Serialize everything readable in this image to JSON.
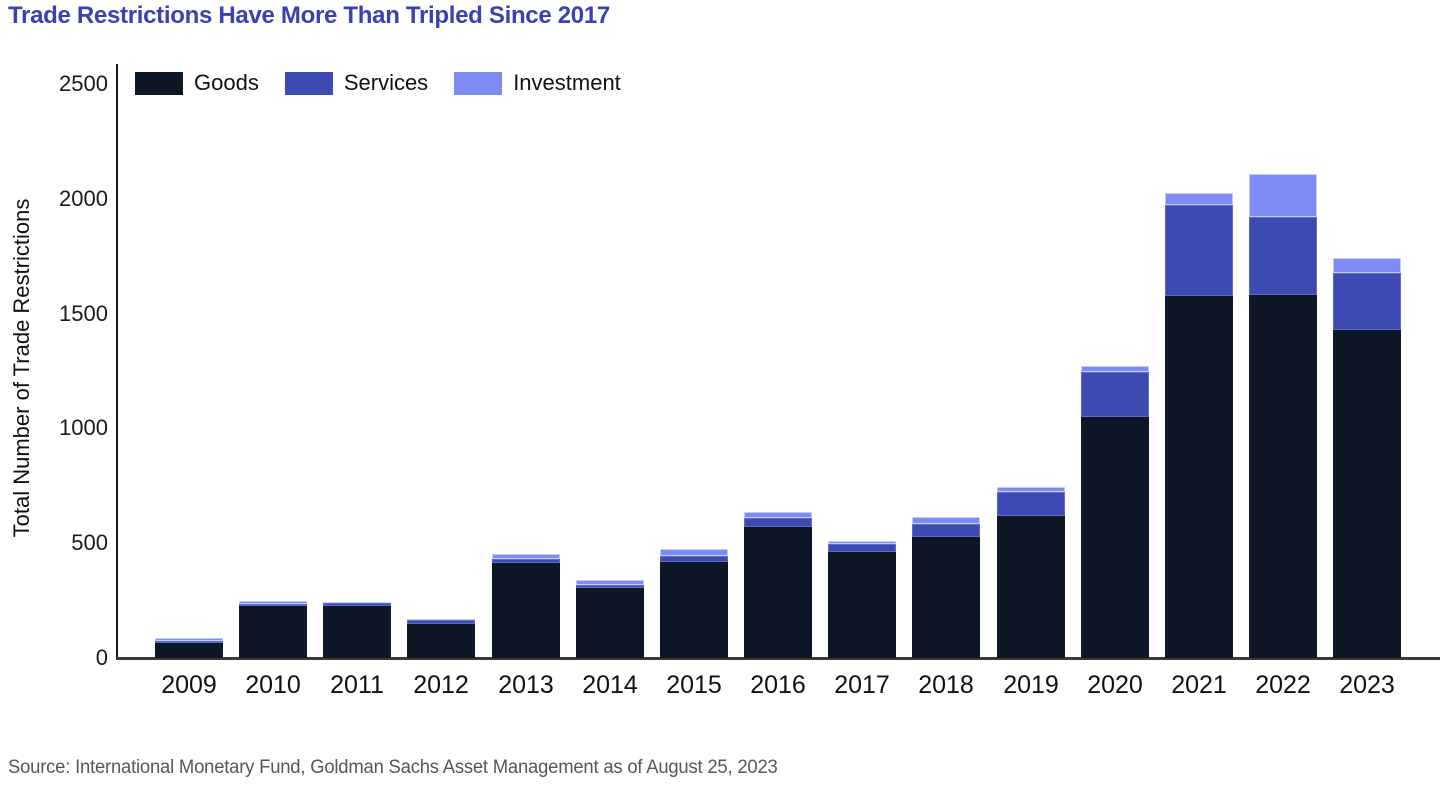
{
  "title": "Trade Restrictions Have More Than Tripled Since 2017",
  "source": "Source: International Monetary Fund, Goldman Sachs Asset Management as of August 25, 2023",
  "colors": {
    "goods": "#0d1726",
    "services": "#3d4ab1",
    "investment": "#7e8bf2",
    "title_text": "#3a41b5",
    "axis_text": "#1a1a1a",
    "source_text": "#575757"
  },
  "legend": [
    {
      "label": "Goods",
      "color": "#0d1726"
    },
    {
      "label": "Services",
      "color": "#3d4ab1"
    },
    {
      "label": "Investment",
      "color": "#7e8bf2"
    }
  ],
  "chart_data": {
    "type": "bar",
    "stacked": true,
    "title": "Trade Restrictions Have More Than Tripled Since 2017",
    "xlabel": "",
    "ylabel": "Total Number of Trade Restrictions",
    "categories": [
      "2009",
      "2010",
      "2011",
      "2012",
      "2013",
      "2014",
      "2015",
      "2016",
      "2017",
      "2018",
      "2019",
      "2020",
      "2021",
      "2022",
      "2023"
    ],
    "series": [
      {
        "name": "Goods",
        "values": [
          65,
          225,
          225,
          150,
          415,
          305,
          420,
          570,
          460,
          525,
          620,
          1050,
          1575,
          1580,
          1430
        ]
      },
      {
        "name": "Services",
        "values": [
          10,
          10,
          15,
          15,
          15,
          15,
          25,
          40,
          35,
          60,
          105,
          195,
          400,
          340,
          245
        ]
      },
      {
        "name": "Investment",
        "values": [
          10,
          15,
          5,
          5,
          25,
          20,
          30,
          25,
          15,
          30,
          20,
          25,
          50,
          190,
          65
        ]
      }
    ],
    "totals": [
      85,
      250,
      245,
      170,
      455,
      340,
      475,
      635,
      510,
      615,
      745,
      1270,
      2025,
      2110,
      1740
    ],
    "ylim": [
      0,
      2500
    ],
    "yticks": [
      "0",
      "500",
      "1000",
      "1500",
      "2000",
      "2500"
    ],
    "grid": false,
    "legend_position": "top-left"
  }
}
